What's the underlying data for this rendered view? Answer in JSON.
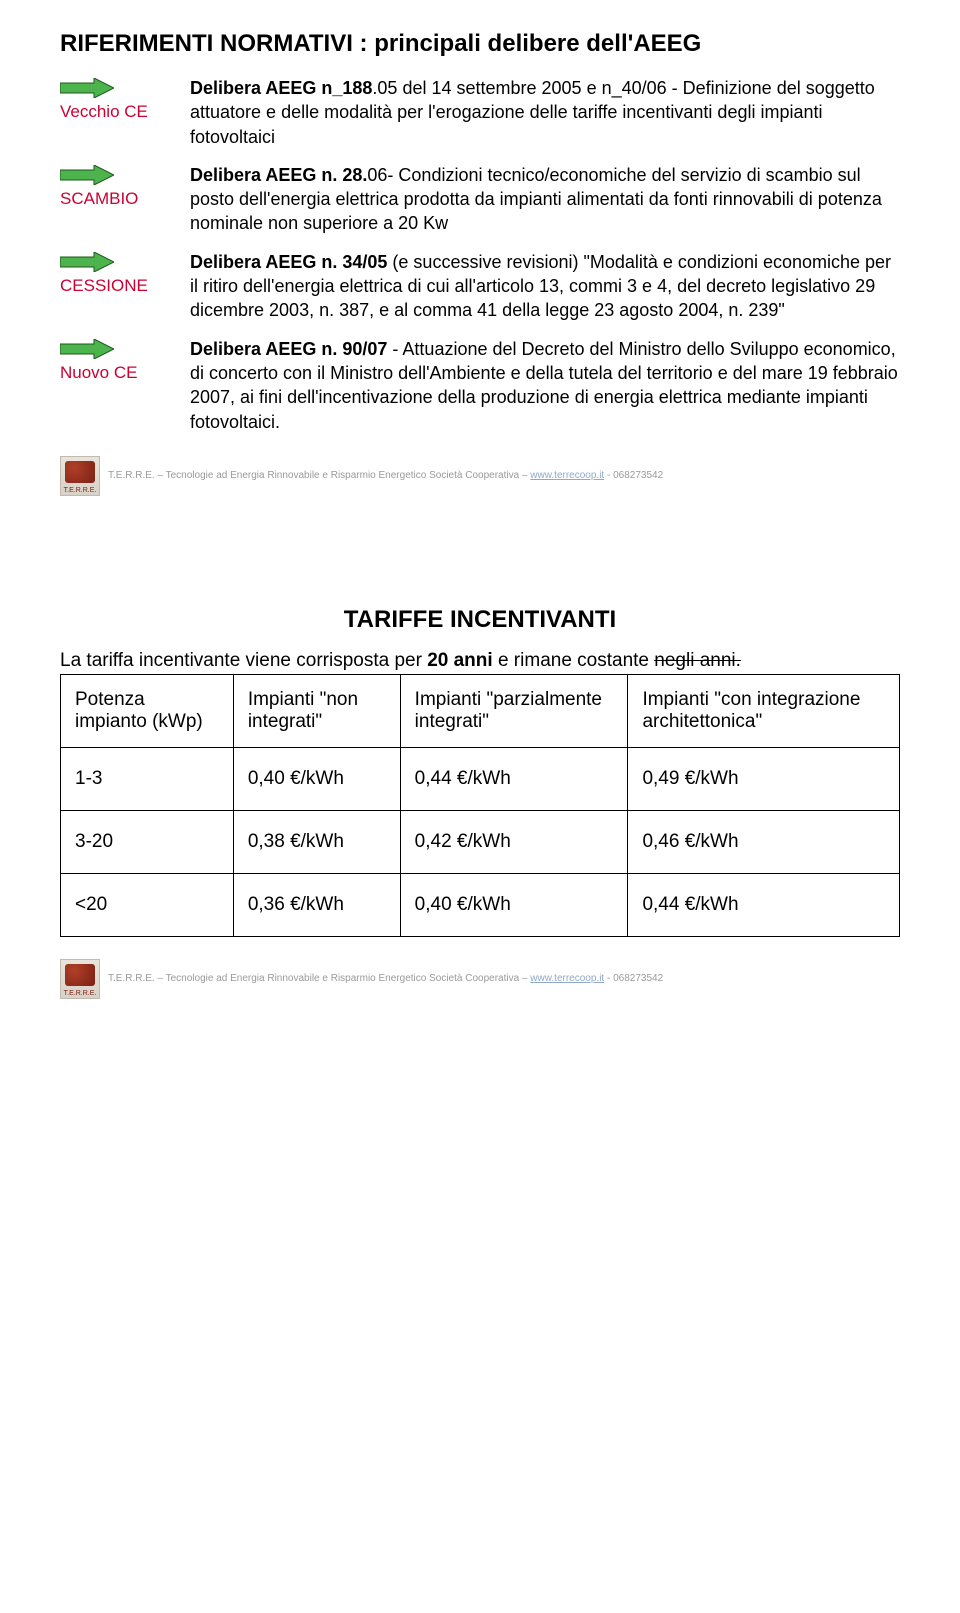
{
  "page1": {
    "title": "RIFERIMENTI NORMATIVI : principali delibere dell'AEEG",
    "arrow_colors": {
      "fill": "#4db34d",
      "stroke": "#1a5a1a"
    },
    "rows": [
      {
        "label": "Vecchio CE",
        "lead": "Delibera AEEG n_188",
        "rest": ".05 del 14 settembre 2005 e n_40/06 - Definizione del soggetto attuatore e delle modalità per l'erogazione delle tariffe incentivanti degli impianti fotovoltaici"
      },
      {
        "label": "SCAMBIO",
        "lead": "Delibera AEEG n. 28.",
        "rest": "06- Condizioni tecnico/economiche del servizio di scambio sul posto dell'energia elettrica prodotta da impianti alimentati da fonti rinnovabili di potenza nominale non superiore a 20 Kw"
      },
      {
        "label": "CESSIONE",
        "lead": "Delibera AEEG n. 34/05",
        "rest": " (e successive revisioni) \"Modalità e condizioni economiche per il ritiro dell'energia elettrica di cui all'articolo 13, commi 3 e 4, del decreto legislativo 29 dicembre 2003, n. 387, e al comma 41 della legge 23 agosto 2004, n. 239\""
      },
      {
        "label": "Nuovo CE",
        "lead": "Delibera AEEG n. 90/07",
        "rest": " - Attuazione del Decreto del Ministro dello Sviluppo economico, di concerto con il Ministro dell'Ambiente e della tutela del territorio e del mare 19 febbraio 2007, ai fini dell'incentivazione della produzione di energia elettrica mediante impianti fotovoltaici."
      }
    ]
  },
  "footer": {
    "icon_text": "T.E.R.R.E.",
    "text_prefix": "T.E.R.R.E. – Tecnologie ad Energia Rinnovabile e Risparmio Energetico   Società Cooperativa – ",
    "link": "www.terrecoop.it",
    "text_suffix": " - 068273542"
  },
  "page2": {
    "title": "TARIFFE INCENTIVANTI",
    "lead_text": "La tariffa incentivante viene corrisposta per ",
    "lead_bold": "20 anni",
    "lead_after": " e rimane costante ",
    "lead_strike": "negli anni.",
    "table": {
      "headers": [
        "Potenza impianto (kWp)",
        "Impianti \"non integrati\"",
        "Impianti \"parzialmente integrati\"",
        "Impianti \"con integrazione architettonica\""
      ],
      "rows": [
        [
          "1-3",
          "0,40 €/kWh",
          "0,44 €/kWh",
          "0,49 €/kWh"
        ],
        [
          "3-20",
          "0,38 €/kWh",
          "0,42 €/kWh",
          "0,46 €/kWh"
        ],
        [
          "<20",
          "0,36 €/kWh",
          "0,40 €/kWh",
          "0,44 €/kWh"
        ]
      ]
    }
  }
}
